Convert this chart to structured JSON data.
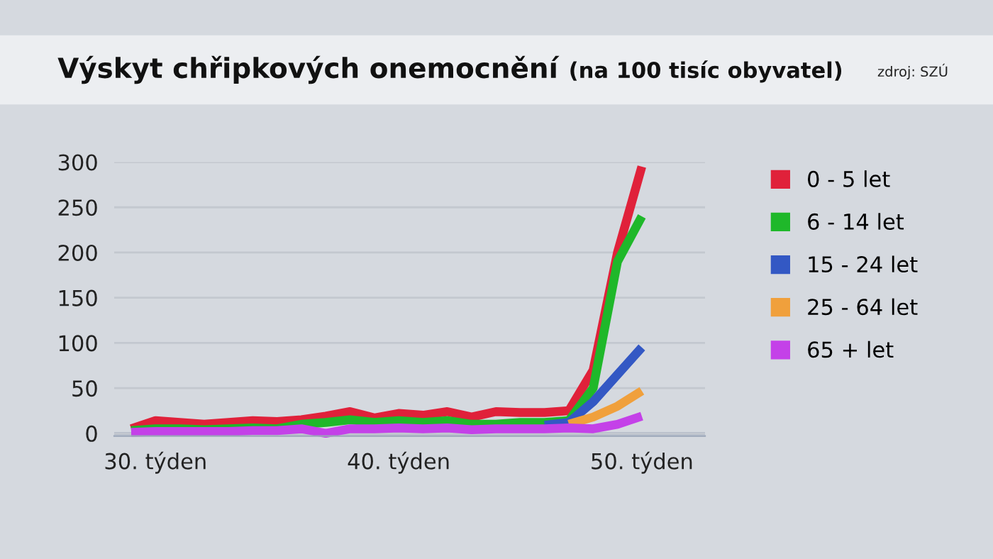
{
  "chart_data": {
    "type": "line",
    "title": "Výskyt chřipkových onemocnění",
    "subtitle": "(na 100 tisíc obyvatel)",
    "annotations": [
      "zdroj: SZÚ"
    ],
    "x": [
      29,
      30,
      31,
      32,
      33,
      34,
      35,
      36,
      37,
      38,
      39,
      40,
      41,
      42,
      43,
      44,
      45,
      46,
      47,
      48,
      49,
      50
    ],
    "series": [
      {
        "name": "0 - 5 let",
        "color": "#e0213a",
        "values": [
          5,
          14,
          12,
          10,
          12,
          14,
          13,
          15,
          19,
          24,
          17,
          22,
          20,
          24,
          18,
          24,
          23,
          23,
          25,
          70,
          200,
          295
        ]
      },
      {
        "name": "6 - 14 let",
        "color": "#1fb82a",
        "values": [
          3,
          5,
          5,
          4,
          5,
          6,
          5,
          10,
          12,
          15,
          12,
          14,
          12,
          14,
          10,
          10,
          12,
          12,
          14,
          50,
          190,
          240
        ]
      },
      {
        "name": "15 - 24 let",
        "color": "#3358c4",
        "values": [
          null,
          null,
          null,
          null,
          null,
          null,
          null,
          null,
          null,
          null,
          null,
          null,
          null,
          null,
          null,
          null,
          null,
          9,
          12,
          35,
          65,
          95
        ]
      },
      {
        "name": "25 - 64 let",
        "color": "#f0a03c",
        "values": [
          null,
          null,
          null,
          null,
          null,
          null,
          null,
          null,
          null,
          null,
          null,
          null,
          null,
          null,
          null,
          null,
          null,
          null,
          10,
          18,
          30,
          47
        ]
      },
      {
        "name": "65 + let",
        "color": "#c441e8",
        "values": [
          1,
          2,
          2,
          2,
          2,
          3,
          3,
          5,
          0,
          5,
          5,
          6,
          5,
          6,
          4,
          5,
          5,
          5,
          6,
          5,
          10,
          19
        ]
      }
    ],
    "xlim": [
      28.3,
      52.6
    ],
    "ylim": [
      -3,
      300
    ],
    "yticks": [
      0,
      50,
      100,
      150,
      200,
      250,
      300
    ],
    "xticks": [
      {
        "value": 30,
        "label": "30. týden"
      },
      {
        "value": 40,
        "label": "40. týden"
      },
      {
        "value": 50,
        "label": "50. týden"
      }
    ],
    "grid": "y",
    "legend": "right",
    "line_style": "solid",
    "marker": "none"
  }
}
